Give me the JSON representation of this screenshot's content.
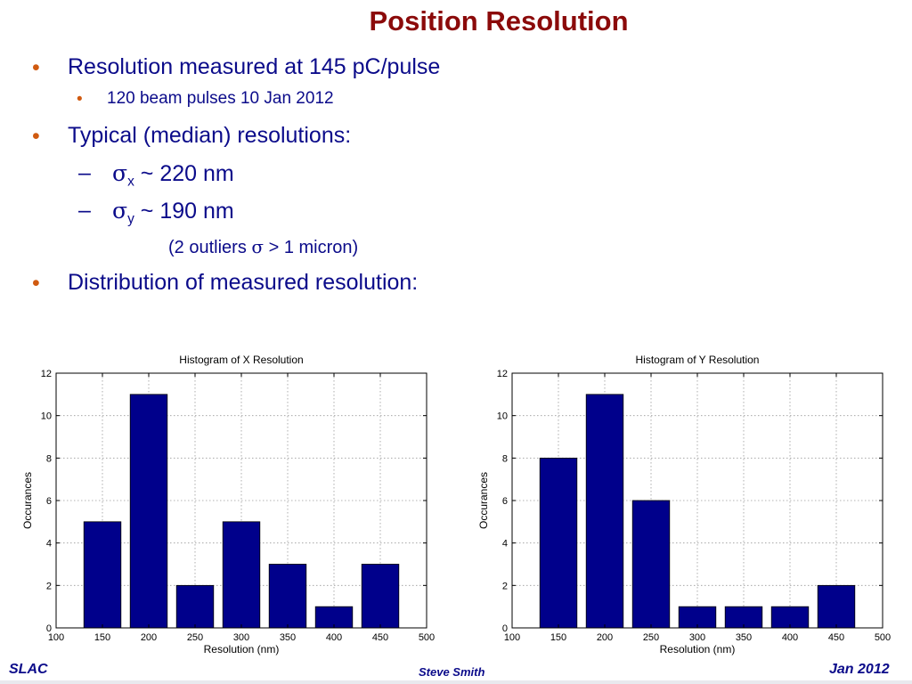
{
  "slide": {
    "title": "Position Resolution",
    "bullet1": "Resolution measured at 145 pC/pulse",
    "sub1": "120 beam pulses 10 Jan 2012",
    "bullet2": "Typical (median) resolutions:",
    "sx_sym": "σ",
    "sx_sub": "x",
    "sx_val": " ~ 220 nm",
    "sy_sym": "σ",
    "sy_sub": "y",
    "sy_val": " ~ 190 nm",
    "outlier_a": "(2 outliers ",
    "outlier_sym": "σ",
    "outlier_b": " > 1 micron)",
    "bullet3": "Distribution of measured resolution:",
    "dash": "–",
    "dot": "•"
  },
  "footer": {
    "left": "SLAC",
    "center": "Steve Smith",
    "right": "Jan 2012"
  },
  "colors": {
    "title": "#8b0a0a",
    "text": "#0b0b8a",
    "bullet": "#d05a10",
    "bar": "#00008b"
  },
  "chart_data": [
    {
      "type": "bar",
      "title": "Histogram of X Resolution",
      "xlabel": "Resolution (nm)",
      "ylabel": "Occurances",
      "x": [
        150,
        200,
        250,
        300,
        350,
        400,
        450
      ],
      "values": [
        5,
        11,
        2,
        5,
        3,
        1,
        3
      ],
      "xlim": [
        100,
        500
      ],
      "ylim": [
        0,
        12
      ],
      "xticks": [
        100,
        150,
        200,
        250,
        300,
        350,
        400,
        450,
        500
      ],
      "yticks": [
        0,
        2,
        4,
        6,
        8,
        10,
        12
      ],
      "grid": true
    },
    {
      "type": "bar",
      "title": "Histogram of Y Resolution",
      "xlabel": "Resolution (nm)",
      "ylabel": "Occurances",
      "x": [
        150,
        200,
        250,
        300,
        350,
        400,
        450
      ],
      "values": [
        8,
        11,
        6,
        1,
        1,
        1,
        2
      ],
      "xlim": [
        100,
        500
      ],
      "ylim": [
        0,
        12
      ],
      "xticks": [
        100,
        150,
        200,
        250,
        300,
        350,
        400,
        450,
        500
      ],
      "yticks": [
        0,
        2,
        4,
        6,
        8,
        10,
        12
      ],
      "grid": true
    }
  ]
}
